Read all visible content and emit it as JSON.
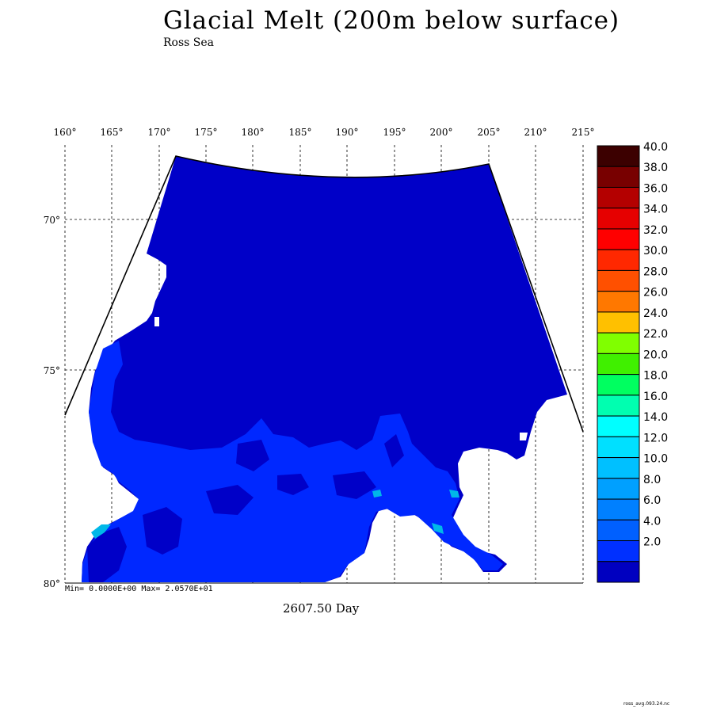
{
  "title": "Glacial Melt (200m below surface)",
  "subtitle": "Ross Sea",
  "stats": "Min= 0.0000E+00  Max= 2.0570E+01",
  "time_label": "2607.50 Day",
  "filename": "ross_avg.093.24.nc",
  "map": {
    "lon_ticks": [
      "160°",
      "165°",
      "170°",
      "175°",
      "180°",
      "185°",
      "190°",
      "195°",
      "200°",
      "205°",
      "210°",
      "215°"
    ],
    "lat_ticks": [
      "70°",
      "75°",
      "80°"
    ],
    "ocean_color": "#0000c8",
    "melt_color": "#0028ff",
    "high_melt_color": "#00b8e8",
    "land_color": "#ffffff"
  },
  "colorbar": {
    "labels": [
      "40.0",
      "38.0",
      "36.0",
      "34.0",
      "32.0",
      "30.0",
      "28.0",
      "26.0",
      "24.0",
      "22.0",
      "20.0",
      "18.0",
      "16.0",
      "14.0",
      "12.0",
      "10.0",
      "8.0",
      "6.0",
      "4.0",
      "2.0"
    ],
    "colors": [
      "#3c0000",
      "#780000",
      "#b40000",
      "#e60000",
      "#ff0000",
      "#ff2800",
      "#ff5000",
      "#ff7800",
      "#ffc000",
      "#80ff00",
      "#40f000",
      "#00ff60",
      "#00ffb0",
      "#00ffff",
      "#00e0ff",
      "#00c0ff",
      "#00a0ff",
      "#0080ff",
      "#0060ff",
      "#0030ff",
      "#0000c0"
    ]
  }
}
